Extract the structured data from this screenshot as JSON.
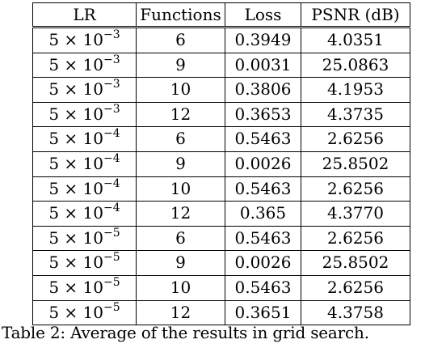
{
  "table": {
    "columns": [
      "LR",
      "Functions",
      "Loss",
      "PSNR (dB)"
    ],
    "rows": [
      {
        "lr_base": "5 × 10",
        "lr_exp": "−3",
        "functions": "6",
        "loss": "0.3949",
        "psnr": "4.0351",
        "bold": false
      },
      {
        "lr_base": "5 × 10",
        "lr_exp": "−3",
        "functions": "9",
        "loss": "0.0031",
        "psnr": "25.0863",
        "bold": false
      },
      {
        "lr_base": "5 × 10",
        "lr_exp": "−3",
        "functions": "10",
        "loss": "0.3806",
        "psnr": "4.1953",
        "bold": false
      },
      {
        "lr_base": "5 × 10",
        "lr_exp": "−3",
        "functions": "12",
        "loss": "0.3653",
        "psnr": "4.3735",
        "bold": false
      },
      {
        "lr_base": "5 × 10",
        "lr_exp": "−4",
        "functions": "6",
        "loss": "0.5463",
        "psnr": "2.6256",
        "bold": false
      },
      {
        "lr_base": "5 × 10",
        "lr_exp": "−4",
        "functions": "9",
        "loss": "0.0026",
        "psnr": "25.8502",
        "bold": true
      },
      {
        "lr_base": "5 × 10",
        "lr_exp": "−4",
        "functions": "10",
        "loss": "0.5463",
        "psnr": "2.6256",
        "bold": false
      },
      {
        "lr_base": "5 × 10",
        "lr_exp": "−4",
        "functions": "12",
        "loss": "0.365",
        "psnr": "4.3770",
        "bold": false
      },
      {
        "lr_base": "5 × 10",
        "lr_exp": "−5",
        "functions": "6",
        "loss": "0.5463",
        "psnr": "2.6256",
        "bold": false
      },
      {
        "lr_base": "5 × 10",
        "lr_exp": "−5",
        "functions": "9",
        "loss": "0.0026",
        "psnr": "25.8502",
        "bold": true
      },
      {
        "lr_base": "5 × 10",
        "lr_exp": "−5",
        "functions": "10",
        "loss": "0.5463",
        "psnr": "2.6256",
        "bold": false
      },
      {
        "lr_base": "5 × 10",
        "lr_exp": "−5",
        "functions": "12",
        "loss": "0.3651",
        "psnr": "4.3758",
        "bold": false
      }
    ]
  },
  "caption": "Table 2: Average of the results in grid search."
}
